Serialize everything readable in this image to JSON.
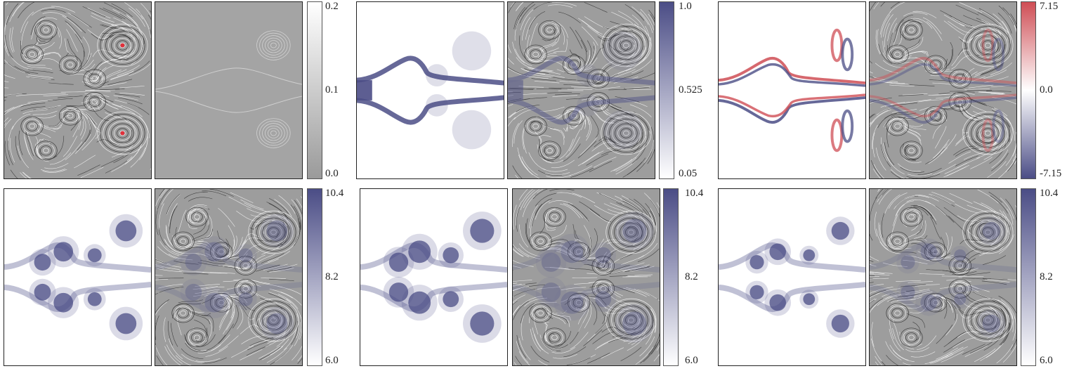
{
  "colorbars": {
    "speed": {
      "max": "0.2",
      "mid": "0.1",
      "min": "0.0",
      "from": "#9a9a9a",
      "to": "#ffffff"
    },
    "density": {
      "max": "1.0",
      "mid": "0.525",
      "min": "0.05",
      "from": "#ffffff",
      "to": "#4b4d86"
    },
    "vorticity": {
      "max": "7.15",
      "mid": "0.0",
      "min": "-7.15",
      "top": "#cf4e55",
      "center": "#ffffff",
      "bottom": "#4b4d86"
    },
    "row2_a": {
      "max": "10.4",
      "mid": "8.2",
      "min": "6.0",
      "from": "#ffffff",
      "to": "#4b4d86"
    },
    "row2_b": {
      "max": "10.4",
      "mid": "8.2",
      "min": "6.0",
      "from": "#ffffff",
      "to": "#4b4d86"
    },
    "row2_c": {
      "max": "10.4",
      "mid": "8.2",
      "min": "6.0",
      "from": "#ffffff",
      "to": "#4b4d86"
    }
  },
  "colors": {
    "streamline_bg": "#9d9d9d",
    "streamline_line": "#ffffff",
    "streamline_dark": "#2a2a2a",
    "accent_red": "#e0303a",
    "density_blue": "#4b4d86"
  }
}
